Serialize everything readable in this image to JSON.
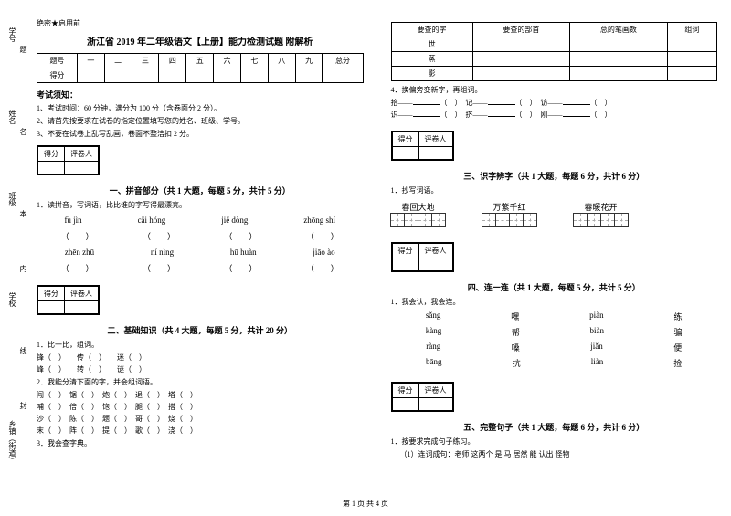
{
  "sidebar": {
    "items": [
      "学号",
      "姓名",
      "班级",
      "学校",
      "乡镇（街道）"
    ],
    "marks": [
      "题",
      "名",
      "本",
      "内",
      "线",
      "封"
    ]
  },
  "header": {
    "confidential": "绝密★启用前"
  },
  "title": "浙江省 2019 年二年级语文【上册】能力检测试题 附解析",
  "scoreTable": {
    "row1": [
      "题号",
      "一",
      "二",
      "三",
      "四",
      "五",
      "六",
      "七",
      "八",
      "九",
      "总分"
    ],
    "row2": "得分"
  },
  "notice": {
    "title": "考试须知：",
    "items": [
      "1、考试时间：60 分钟，满分为 100 分（含卷面分 2 分）。",
      "2、请首先按要求在试卷的指定位置填写您的姓名、班级、学号。",
      "3、不要在试卷上乱写乱画，卷面不整洁扣 2 分。"
    ]
  },
  "scoreBox": {
    "c1": "得分",
    "c2": "评卷人"
  },
  "sections": {
    "s1": {
      "title": "一、拼音部分（共 1 大题，每题 5 分，共计 5 分）",
      "q1": "1．读拼音，写词语，比比谁的字写得最漂亮。"
    },
    "s2": {
      "title": "二、基础知识（共 4 大题，每题 5 分，共计 20 分）",
      "q1": "1．比一比，组词。",
      "q2": "2．我能分清下面的字，并会组词语。",
      "q3": "3．我会查字典。"
    },
    "s3": {
      "title": "三、识字辨字（共 1 大题，每题 6 分，共计 6 分）",
      "q1": "1．抄写词语。"
    },
    "s4": {
      "title": "四、连一连（共 1 大题，每题 5 分，共计 5 分）",
      "q1": "1．我会认，我会连。"
    },
    "s5": {
      "title": "五、完整句子（共 1 大题，每题 6 分，共计 6 分）",
      "q1": "1．按要求完成句子练习。",
      "q1sub": "（1）连词成句：老师 这两个 是 马 居然 能 认出 怪物"
    }
  },
  "pinyin": {
    "row1": [
      "fù jìn",
      "cǎi hóng",
      "jiě dòng",
      "zhōng shí"
    ],
    "row2": [
      "zhēn zhū",
      "ní nìng",
      "hū huàn",
      "jiāo ào"
    ]
  },
  "s2q1": {
    "r1": [
      "锋（",
      "）",
      "传（",
      "）",
      "迷（",
      "）"
    ],
    "r2": [
      "峰（",
      "）",
      "转（",
      "）",
      "谜（",
      "）"
    ]
  },
  "s2q2": {
    "rows": [
      [
        "闯（",
        "）",
        "锯（",
        "）",
        "炮（",
        "）",
        "退（",
        "）",
        "塔（",
        "）"
      ],
      [
        "哺（",
        "）",
        "倍（",
        "）",
        "饱（",
        "）",
        "腿（",
        "）",
        "搭（",
        "）"
      ],
      [
        "沙（",
        "）",
        "陈（",
        "）",
        "题（",
        "）",
        "哥（",
        "）",
        "烧（",
        "）"
      ],
      [
        "末（",
        "）",
        "阵（",
        "）",
        "提（",
        "）",
        "歌（",
        "）",
        "浇（",
        "）"
      ]
    ]
  },
  "lookupTable": {
    "headers": [
      "要查的字",
      "要查的部首",
      "总的笔画数",
      "组词"
    ],
    "rows": [
      "世",
      "蒸",
      "影"
    ]
  },
  "s2q4": {
    "label": "4．换偏旁变新字，再组词。",
    "rows": [
      [
        "拾——",
        "（",
        "）",
        "记——",
        "（",
        "）",
        "访——",
        "（",
        "）"
      ],
      [
        "识——",
        "（",
        "）",
        "挤——",
        "（",
        "）",
        "刚——",
        "（",
        "）"
      ]
    ]
  },
  "words": [
    "春回大地",
    "万紫千红",
    "春暖花开"
  ],
  "match": {
    "rows": [
      [
        "sǎng",
        "嘿",
        "piàn",
        "练"
      ],
      [
        "kàng",
        "帮",
        "biàn",
        "骗"
      ],
      [
        "ràng",
        "嗓",
        "jiǎn",
        "便"
      ],
      [
        "bāng",
        "抗",
        "liàn",
        "捡"
      ]
    ]
  },
  "footer": "第 1 页 共 4 页"
}
